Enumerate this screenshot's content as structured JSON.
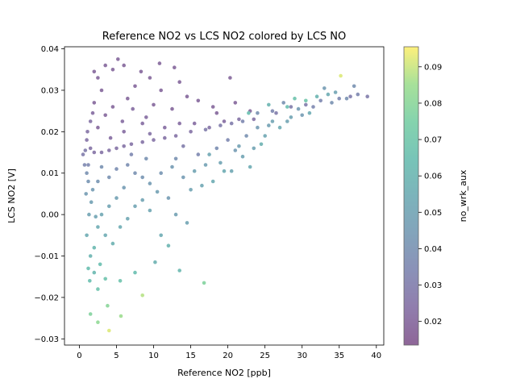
{
  "chart_data": {
    "type": "scatter",
    "title": "Reference NO2 vs LCS NO2 colored by LCS NO",
    "xlabel": "Reference NO2 [ppb]",
    "ylabel": "LCS NO2 [V]",
    "xlim": [
      -2,
      41
    ],
    "ylim": [
      -0.0315,
      0.0405
    ],
    "xticks": [
      0,
      5,
      10,
      15,
      20,
      25,
      30,
      35,
      40
    ],
    "yticks": [
      -0.03,
      -0.02,
      -0.01,
      0.0,
      0.01,
      0.02,
      0.03,
      0.04
    ],
    "xtick_labels": [
      "0",
      "5",
      "10",
      "15",
      "20",
      "25",
      "30",
      "35",
      "40"
    ],
    "ytick_labels": [
      "−0.03",
      "−0.02",
      "−0.01",
      "0.00",
      "0.01",
      "0.02",
      "0.03",
      "0.04"
    ],
    "colorbar": {
      "label": "no_wrk_aux",
      "range": [
        0.0135,
        0.0955
      ],
      "ticks": [
        0.02,
        0.03,
        0.04,
        0.05,
        0.06,
        0.07,
        0.08,
        0.09
      ],
      "tick_labels": [
        "0.02",
        "0.03",
        "0.04",
        "0.05",
        "0.06",
        "0.07",
        "0.08",
        "0.09"
      ],
      "colormap": "viridis"
    },
    "grid": false,
    "point_alpha": 0.6,
    "points": [
      [
        1.0,
        0.018,
        0.025
      ],
      [
        1.2,
        0.012,
        0.035
      ],
      [
        0.9,
        0.005,
        0.045
      ],
      [
        1.3,
        0.0,
        0.05
      ],
      [
        1.0,
        -0.005,
        0.055
      ],
      [
        1.5,
        -0.01,
        0.06
      ],
      [
        1.4,
        -0.016,
        0.065
      ],
      [
        2.0,
        -0.014,
        0.062
      ],
      [
        2.5,
        -0.018,
        0.068
      ],
      [
        1.5,
        -0.024,
        0.078
      ],
      [
        2.5,
        -0.026,
        0.082
      ],
      [
        4.0,
        -0.028,
        0.092
      ],
      [
        3.8,
        -0.022,
        0.08
      ],
      [
        5.6,
        -0.0245,
        0.085
      ],
      [
        8.5,
        -0.0195,
        0.088
      ],
      [
        16.8,
        -0.0165,
        0.078
      ],
      [
        5.5,
        -0.016,
        0.068
      ],
      [
        7.5,
        -0.014,
        0.065
      ],
      [
        13.5,
        -0.0135,
        0.062
      ],
      [
        10.2,
        -0.0115,
        0.058
      ],
      [
        12.0,
        -0.0075,
        0.06
      ],
      [
        11.0,
        -0.005,
        0.055
      ],
      [
        14.5,
        -0.002,
        0.05
      ],
      [
        13.0,
        0.0,
        0.048
      ],
      [
        12.0,
        0.004,
        0.045
      ],
      [
        15.0,
        0.006,
        0.05
      ],
      [
        16.5,
        0.007,
        0.052
      ],
      [
        18.0,
        0.008,
        0.055
      ],
      [
        17.5,
        0.0145,
        0.052
      ],
      [
        19.5,
        0.0105,
        0.055
      ],
      [
        20.5,
        0.0105,
        0.052
      ],
      [
        23.0,
        0.0115,
        0.055
      ],
      [
        22.0,
        0.014,
        0.05
      ],
      [
        24.5,
        0.017,
        0.058
      ],
      [
        25.0,
        0.019,
        0.052
      ],
      [
        25.5,
        0.0215,
        0.048
      ],
      [
        27.0,
        0.021,
        0.055
      ],
      [
        28.5,
        0.0235,
        0.05
      ],
      [
        30.0,
        0.024,
        0.045
      ],
      [
        28.0,
        0.026,
        0.065
      ],
      [
        29.0,
        0.028,
        0.068
      ],
      [
        30.5,
        0.0275,
        0.07
      ],
      [
        32.0,
        0.0285,
        0.06
      ],
      [
        33.5,
        0.029,
        0.055
      ],
      [
        34.5,
        0.0295,
        0.05
      ],
      [
        35.2,
        0.0335,
        0.092
      ],
      [
        36.0,
        0.028,
        0.04
      ],
      [
        37.5,
        0.029,
        0.035
      ],
      [
        38.8,
        0.0285,
        0.03
      ],
      [
        37.0,
        0.031,
        0.04
      ],
      [
        33.0,
        0.0305,
        0.045
      ],
      [
        34.0,
        0.027,
        0.04
      ],
      [
        31.5,
        0.026,
        0.035
      ],
      [
        27.5,
        0.027,
        0.04
      ],
      [
        26.0,
        0.025,
        0.035
      ],
      [
        24.0,
        0.0245,
        0.04
      ],
      [
        22.0,
        0.0225,
        0.035
      ],
      [
        20.5,
        0.022,
        0.03
      ],
      [
        19.0,
        0.0215,
        0.03
      ],
      [
        17.0,
        0.0205,
        0.03
      ],
      [
        15.0,
        0.02,
        0.025
      ],
      [
        13.0,
        0.019,
        0.025
      ],
      [
        11.5,
        0.0185,
        0.025
      ],
      [
        10.0,
        0.018,
        0.025
      ],
      [
        8.5,
        0.0175,
        0.025
      ],
      [
        7.0,
        0.017,
        0.025
      ],
      [
        6.0,
        0.0165,
        0.025
      ],
      [
        5.0,
        0.016,
        0.025
      ],
      [
        4.0,
        0.0155,
        0.025
      ],
      [
        3.0,
        0.015,
        0.025
      ],
      [
        2.0,
        0.015,
        0.025
      ],
      [
        1.5,
        0.016,
        0.025
      ],
      [
        2.5,
        0.021,
        0.02
      ],
      [
        3.5,
        0.024,
        0.02
      ],
      [
        2.0,
        0.027,
        0.02
      ],
      [
        3.0,
        0.03,
        0.02
      ],
      [
        2.5,
        0.033,
        0.02
      ],
      [
        3.5,
        0.036,
        0.02
      ],
      [
        2.0,
        0.0345,
        0.02
      ],
      [
        5.2,
        0.0375,
        0.02
      ],
      [
        6.0,
        0.036,
        0.02
      ],
      [
        4.5,
        0.035,
        0.02
      ],
      [
        10.8,
        0.0365,
        0.02
      ],
      [
        12.8,
        0.0355,
        0.02
      ],
      [
        8.3,
        0.0345,
        0.02
      ],
      [
        9.5,
        0.033,
        0.02
      ],
      [
        7.5,
        0.031,
        0.02
      ],
      [
        11.0,
        0.03,
        0.02
      ],
      [
        13.5,
        0.032,
        0.02
      ],
      [
        14.5,
        0.0285,
        0.02
      ],
      [
        16.0,
        0.0275,
        0.02
      ],
      [
        18.0,
        0.026,
        0.02
      ],
      [
        20.3,
        0.033,
        0.02
      ],
      [
        21.0,
        0.027,
        0.02
      ],
      [
        23.0,
        0.025,
        0.02
      ],
      [
        18.5,
        0.0245,
        0.02
      ],
      [
        12.5,
        0.0255,
        0.02
      ],
      [
        10.0,
        0.0265,
        0.02
      ],
      [
        6.5,
        0.028,
        0.02
      ],
      [
        4.5,
        0.026,
        0.02
      ],
      [
        8.5,
        0.022,
        0.022
      ],
      [
        6.0,
        0.02,
        0.022
      ],
      [
        9.5,
        0.0195,
        0.025
      ],
      [
        11.5,
        0.021,
        0.022
      ],
      [
        13.5,
        0.022,
        0.022
      ],
      [
        15.5,
        0.022,
        0.022
      ],
      [
        17.5,
        0.021,
        0.025
      ],
      [
        19.5,
        0.0225,
        0.022
      ],
      [
        21.5,
        0.023,
        0.025
      ],
      [
        23.5,
        0.023,
        0.025
      ],
      [
        26.5,
        0.0245,
        0.03
      ],
      [
        28.5,
        0.026,
        0.03
      ],
      [
        30.5,
        0.0265,
        0.03
      ],
      [
        32.5,
        0.0275,
        0.035
      ],
      [
        35.0,
        0.028,
        0.035
      ],
      [
        36.5,
        0.0285,
        0.03
      ],
      [
        1.0,
        0.01,
        0.04
      ],
      [
        1.2,
        0.008,
        0.042
      ],
      [
        1.8,
        0.006,
        0.045
      ],
      [
        2.5,
        0.008,
        0.042
      ],
      [
        3.0,
        0.0115,
        0.04
      ],
      [
        4.0,
        0.009,
        0.04
      ],
      [
        5.0,
        0.011,
        0.038
      ],
      [
        6.5,
        0.012,
        0.038
      ],
      [
        7.5,
        0.01,
        0.04
      ],
      [
        8.5,
        0.009,
        0.042
      ],
      [
        9.5,
        0.0075,
        0.045
      ],
      [
        10.5,
        0.0055,
        0.048
      ],
      [
        6.0,
        0.0065,
        0.045
      ],
      [
        5.0,
        0.004,
        0.048
      ],
      [
        4.0,
        0.002,
        0.05
      ],
      [
        3.0,
        0.0,
        0.052
      ],
      [
        2.5,
        -0.003,
        0.055
      ],
      [
        3.5,
        -0.005,
        0.055
      ],
      [
        4.5,
        -0.007,
        0.058
      ],
      [
        5.5,
        -0.003,
        0.055
      ],
      [
        6.5,
        -0.001,
        0.052
      ],
      [
        7.5,
        0.002,
        0.05
      ],
      [
        8.5,
        0.0035,
        0.05
      ],
      [
        9.5,
        0.001,
        0.052
      ],
      [
        2.0,
        -0.008,
        0.062
      ],
      [
        2.8,
        -0.012,
        0.065
      ],
      [
        3.5,
        -0.0155,
        0.068
      ],
      [
        1.2,
        -0.013,
        0.065
      ],
      [
        2.2,
        -0.0005,
        0.05
      ],
      [
        1.6,
        0.003,
        0.048
      ],
      [
        0.7,
        0.012,
        0.035
      ],
      [
        0.5,
        0.0145,
        0.03
      ],
      [
        0.8,
        0.0155,
        0.03
      ],
      [
        1.1,
        0.02,
        0.025
      ],
      [
        1.5,
        0.0225,
        0.025
      ],
      [
        1.8,
        0.0245,
        0.022
      ],
      [
        4.2,
        0.0185,
        0.022
      ],
      [
        5.8,
        0.0225,
        0.022
      ],
      [
        7.2,
        0.0255,
        0.022
      ],
      [
        9.0,
        0.0235,
        0.022
      ],
      [
        14.0,
        0.0165,
        0.03
      ],
      [
        16.0,
        0.0145,
        0.035
      ],
      [
        18.5,
        0.016,
        0.038
      ],
      [
        20.0,
        0.018,
        0.035
      ],
      [
        22.5,
        0.019,
        0.04
      ],
      [
        24.0,
        0.021,
        0.045
      ],
      [
        26.0,
        0.0225,
        0.05
      ],
      [
        28.0,
        0.0225,
        0.05
      ],
      [
        29.5,
        0.0255,
        0.045
      ],
      [
        31.0,
        0.0245,
        0.055
      ],
      [
        25.5,
        0.0265,
        0.06
      ],
      [
        22.8,
        0.0245,
        0.065
      ],
      [
        21.5,
        0.0165,
        0.048
      ],
      [
        23.5,
        0.016,
        0.05
      ],
      [
        17.0,
        0.012,
        0.048
      ],
      [
        15.5,
        0.0105,
        0.05
      ],
      [
        14.0,
        0.009,
        0.045
      ],
      [
        12.5,
        0.0115,
        0.045
      ],
      [
        11.0,
        0.01,
        0.042
      ],
      [
        13.0,
        0.0135,
        0.04
      ],
      [
        19.0,
        0.0125,
        0.05
      ],
      [
        21.0,
        0.0155,
        0.045
      ],
      [
        9.0,
        0.0135,
        0.04
      ],
      [
        7.0,
        0.0145,
        0.035
      ]
    ]
  }
}
